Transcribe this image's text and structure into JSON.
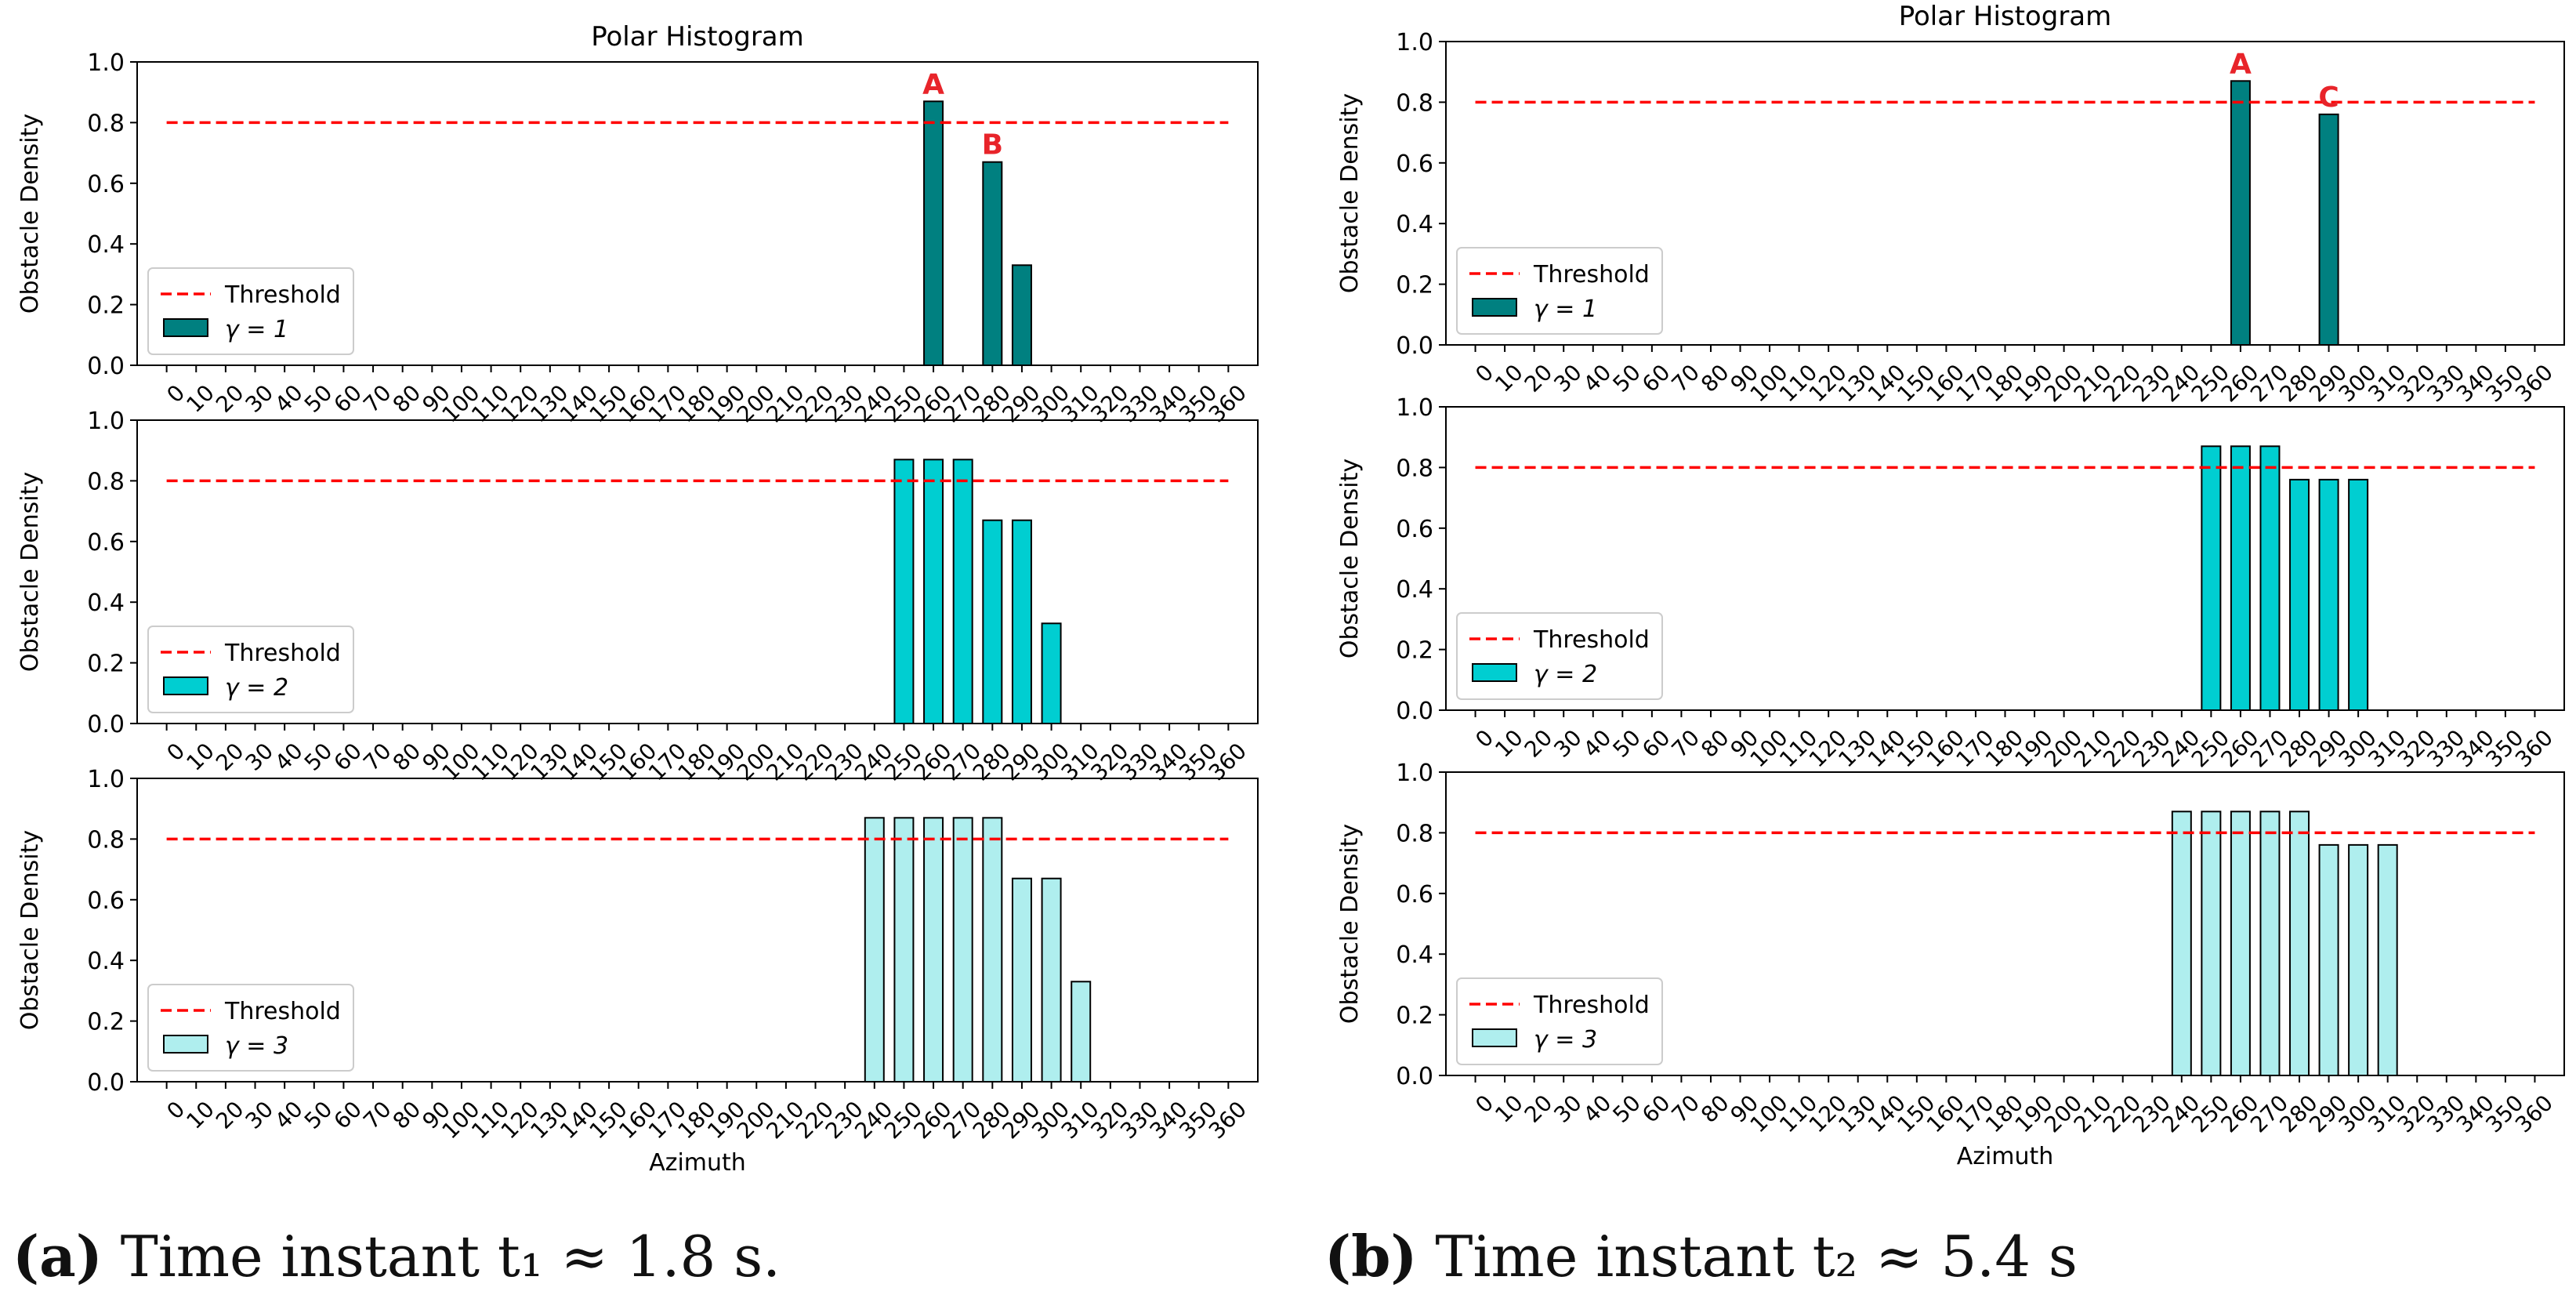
{
  "chart_data": [
    {
      "panel": "a",
      "type": "bar",
      "title": "Polar Histogram",
      "xlabel": "Azimuth",
      "ylabel": "Obstacle Density",
      "ylim": [
        0,
        1.0
      ],
      "yticks": [
        "0.0",
        "0.2",
        "0.4",
        "0.6",
        "0.8",
        "1.0"
      ],
      "xticks": [
        "0",
        "10",
        "20",
        "30",
        "40",
        "50",
        "60",
        "70",
        "80",
        "90",
        "100",
        "110",
        "120",
        "130",
        "140",
        "150",
        "160",
        "170",
        "180",
        "190",
        "200",
        "210",
        "220",
        "230",
        "240",
        "250",
        "260",
        "270",
        "280",
        "290",
        "300",
        "310",
        "320",
        "330",
        "340",
        "350",
        "360"
      ],
      "threshold": 0.8,
      "threshold_label": "Threshold",
      "subplots": [
        {
          "legend": "γ = 1",
          "color": "#008080",
          "bars": [
            {
              "x": 260,
              "y": 0.87
            },
            {
              "x": 280,
              "y": 0.67
            },
            {
              "x": 290,
              "y": 0.33
            }
          ],
          "annotations": [
            {
              "text": "A",
              "x": 260,
              "y": 0.87
            },
            {
              "text": "B",
              "x": 280,
              "y": 0.67
            }
          ]
        },
        {
          "legend": "γ = 2",
          "color": "#00CED1",
          "bars": [
            {
              "x": 250,
              "y": 0.87
            },
            {
              "x": 260,
              "y": 0.87
            },
            {
              "x": 270,
              "y": 0.87
            },
            {
              "x": 280,
              "y": 0.67
            },
            {
              "x": 290,
              "y": 0.67
            },
            {
              "x": 300,
              "y": 0.33
            }
          ],
          "annotations": []
        },
        {
          "legend": "γ = 3",
          "color": "#AFEEEE",
          "bars": [
            {
              "x": 240,
              "y": 0.87
            },
            {
              "x": 250,
              "y": 0.87
            },
            {
              "x": 260,
              "y": 0.87
            },
            {
              "x": 270,
              "y": 0.87
            },
            {
              "x": 280,
              "y": 0.87
            },
            {
              "x": 290,
              "y": 0.67
            },
            {
              "x": 300,
              "y": 0.67
            },
            {
              "x": 310,
              "y": 0.33
            }
          ],
          "annotations": []
        }
      ]
    },
    {
      "panel": "b",
      "type": "bar",
      "title": "Polar Histogram",
      "xlabel": "Azimuth",
      "ylabel": "Obstacle Density",
      "ylim": [
        0,
        1.0
      ],
      "yticks": [
        "0.0",
        "0.2",
        "0.4",
        "0.6",
        "0.8",
        "1.0"
      ],
      "xticks": [
        "0",
        "10",
        "20",
        "30",
        "40",
        "50",
        "60",
        "70",
        "80",
        "90",
        "100",
        "110",
        "120",
        "130",
        "140",
        "150",
        "160",
        "170",
        "180",
        "190",
        "200",
        "210",
        "220",
        "230",
        "240",
        "250",
        "260",
        "270",
        "280",
        "290",
        "300",
        "310",
        "320",
        "330",
        "340",
        "350",
        "360"
      ],
      "threshold": 0.8,
      "threshold_label": "Threshold",
      "subplots": [
        {
          "legend": "γ = 1",
          "color": "#008080",
          "bars": [
            {
              "x": 260,
              "y": 0.87
            },
            {
              "x": 290,
              "y": 0.76
            }
          ],
          "annotations": [
            {
              "text": "A",
              "x": 260,
              "y": 0.87
            },
            {
              "text": "C",
              "x": 290,
              "y": 0.76
            }
          ]
        },
        {
          "legend": "γ = 2",
          "color": "#00CED1",
          "bars": [
            {
              "x": 250,
              "y": 0.87
            },
            {
              "x": 260,
              "y": 0.87
            },
            {
              "x": 270,
              "y": 0.87
            },
            {
              "x": 280,
              "y": 0.76
            },
            {
              "x": 290,
              "y": 0.76
            },
            {
              "x": 300,
              "y": 0.76
            }
          ],
          "annotations": []
        },
        {
          "legend": "γ = 3",
          "color": "#AFEEEE",
          "bars": [
            {
              "x": 240,
              "y": 0.87
            },
            {
              "x": 250,
              "y": 0.87
            },
            {
              "x": 260,
              "y": 0.87
            },
            {
              "x": 270,
              "y": 0.87
            },
            {
              "x": 280,
              "y": 0.87
            },
            {
              "x": 290,
              "y": 0.76
            },
            {
              "x": 300,
              "y": 0.76
            },
            {
              "x": 310,
              "y": 0.76
            }
          ],
          "annotations": []
        }
      ]
    }
  ],
  "captions": {
    "a": {
      "label": "(a)",
      "text": "Time instant t₁ ≈ 1.8 s."
    },
    "b": {
      "label": "(b)",
      "text": "Time instant t₂ ≈ 5.4 s"
    }
  },
  "colors": {
    "threshold": "#FF0000",
    "annotation": "#E8242A",
    "bar_edge": "#000000"
  }
}
